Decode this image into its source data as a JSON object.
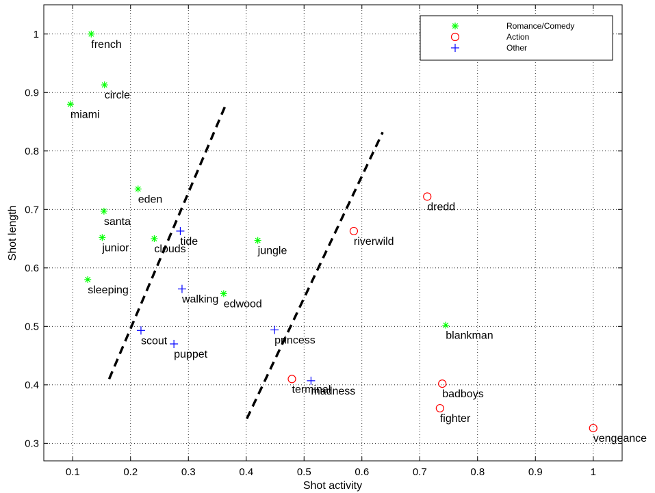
{
  "chart_data": {
    "type": "scatter",
    "xlabel": "Shot activity",
    "ylabel": "Shot length",
    "xlim": [
      0.05,
      1.05
    ],
    "ylim": [
      0.27,
      1.05
    ],
    "xticks": [
      0.1,
      0.2,
      0.3,
      0.4,
      0.5,
      0.6,
      0.7,
      0.8,
      0.9,
      1
    ],
    "xtick_labels": [
      "0.1",
      "0.2",
      "0.3",
      "0.4",
      "0.5",
      "0.6",
      "0.7",
      "0.8",
      "0.9",
      "1"
    ],
    "yticks": [
      0.3,
      0.4,
      0.5,
      0.6,
      0.7,
      0.8,
      0.9,
      1
    ],
    "ytick_labels": [
      "0.3",
      "0.4",
      "0.5",
      "0.6",
      "0.7",
      "0.8",
      "0.9",
      "1"
    ],
    "grid": true,
    "legend_position": "top-right",
    "series": [
      {
        "name": "Romance/Comedy",
        "marker": "asterisk",
        "color": "#00ff00",
        "points": [
          {
            "label": "french",
            "x": 0.132,
            "y": 1.0
          },
          {
            "label": "circle",
            "x": 0.155,
            "y": 0.913
          },
          {
            "label": "miami",
            "x": 0.096,
            "y": 0.88
          },
          {
            "label": "eden",
            "x": 0.213,
            "y": 0.735
          },
          {
            "label": "santa",
            "x": 0.154,
            "y": 0.697
          },
          {
            "label": "junior",
            "x": 0.151,
            "y": 0.652
          },
          {
            "label": "clouds",
            "x": 0.241,
            "y": 0.65
          },
          {
            "label": "jungle",
            "x": 0.42,
            "y": 0.647
          },
          {
            "label": "sleeping",
            "x": 0.126,
            "y": 0.58
          },
          {
            "label": "edwood",
            "x": 0.361,
            "y": 0.556
          },
          {
            "label": "blankman",
            "x": 0.745,
            "y": 0.502
          }
        ]
      },
      {
        "name": "Action",
        "marker": "circle",
        "color": "#ff0000",
        "points": [
          {
            "label": "dredd",
            "x": 0.713,
            "y": 0.722
          },
          {
            "label": "riverwild",
            "x": 0.586,
            "y": 0.663
          },
          {
            "label": "terminal",
            "x": 0.479,
            "y": 0.41
          },
          {
            "label": "badboys",
            "x": 0.739,
            "y": 0.402
          },
          {
            "label": "fighter",
            "x": 0.735,
            "y": 0.36
          },
          {
            "label": "vengeance",
            "x": 1.0,
            "y": 0.326
          }
        ]
      },
      {
        "name": "Other",
        "marker": "plus",
        "color": "#0000ff",
        "points": [
          {
            "label": "tide",
            "x": 0.286,
            "y": 0.663
          },
          {
            "label": "walking",
            "x": 0.289,
            "y": 0.564
          },
          {
            "label": "scout",
            "x": 0.218,
            "y": 0.493
          },
          {
            "label": "puppet",
            "x": 0.275,
            "y": 0.47
          },
          {
            "label": "princess",
            "x": 0.449,
            "y": 0.494
          },
          {
            "label": "madness",
            "x": 0.512,
            "y": 0.407
          }
        ]
      }
    ],
    "reference_lines": [
      {
        "style": "dashed",
        "color": "#000000",
        "x": [
          0.163,
          0.365
        ],
        "y": [
          0.41,
          0.88
        ]
      },
      {
        "style": "dashed",
        "color": "#000000",
        "x": [
          0.401,
          0.636
        ],
        "y": [
          0.342,
          0.832
        ]
      }
    ]
  }
}
